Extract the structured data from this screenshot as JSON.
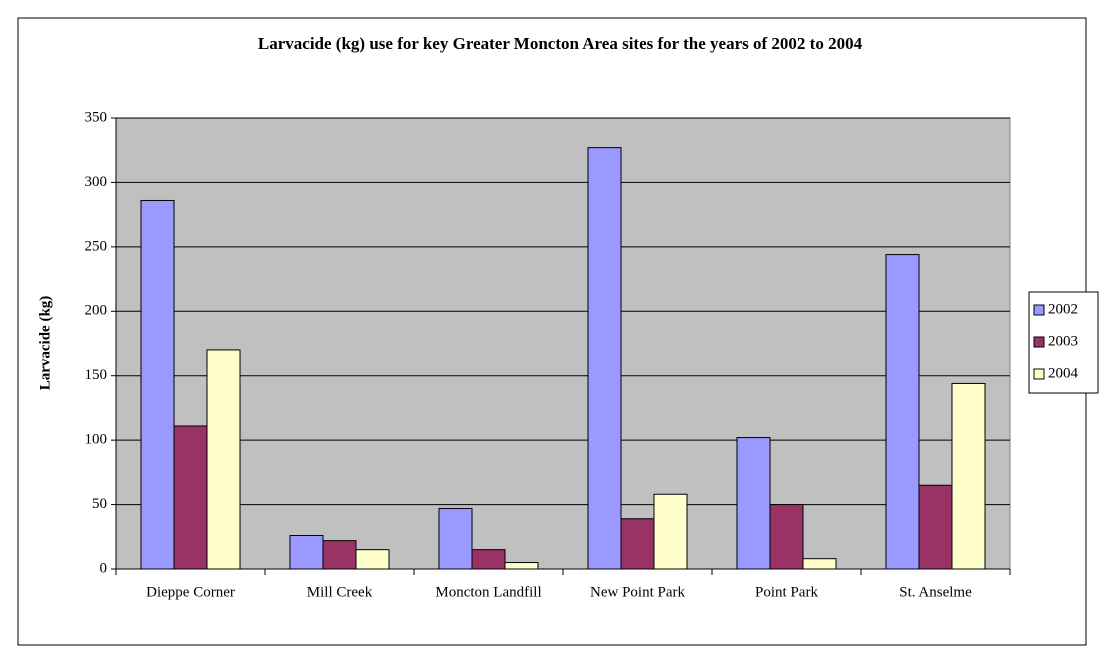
{
  "chart_data": {
    "type": "bar",
    "title": "Larvacide (kg) use for key Greater Moncton Area sites for the years of 2002 to 2004",
    "y_label": "Larvacide (kg)",
    "categories": [
      "Dieppe Corner",
      "Mill Creek",
      "Moncton Landfill",
      "New Point Park",
      "Point Park",
      "St. Anselme"
    ],
    "series": [
      {
        "name": "2002",
        "color": "#9999ff",
        "values": [
          286,
          26,
          47,
          327,
          102,
          244
        ]
      },
      {
        "name": "2003",
        "color": "#993366",
        "values": [
          111,
          22,
          15,
          39,
          50,
          65
        ]
      },
      {
        "name": "2004",
        "color": "#ffffcc",
        "values": [
          170,
          15,
          5,
          58,
          8,
          144
        ]
      }
    ],
    "ylim": [
      0,
      350
    ],
    "yticks": [
      0,
      50,
      100,
      150,
      200,
      250,
      300,
      350
    ],
    "grid": true,
    "legend": "right"
  }
}
